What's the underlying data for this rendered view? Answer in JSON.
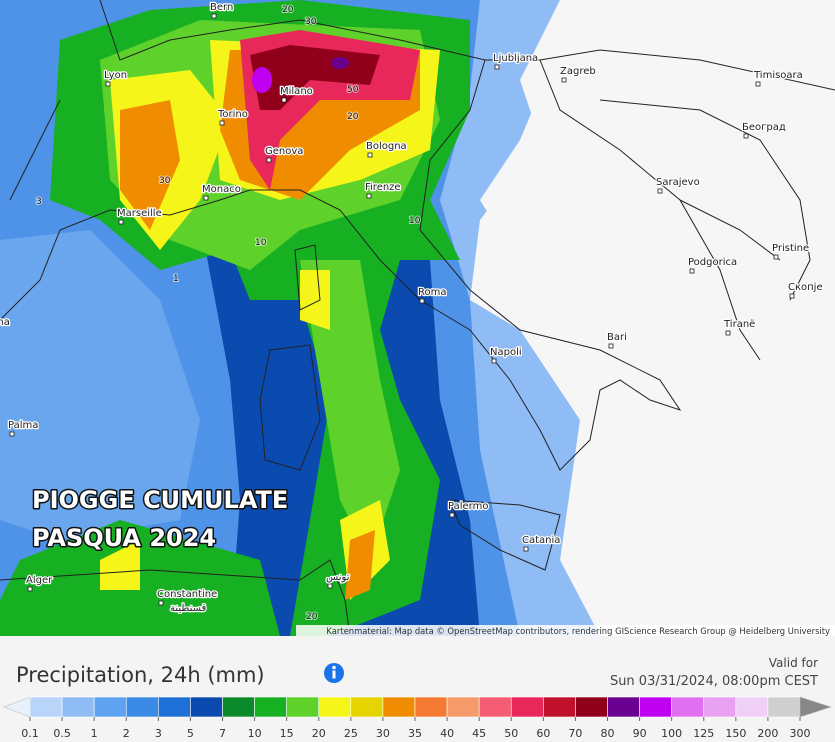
{
  "map": {
    "overlay_title": [
      "PIOGGE CUMULATE",
      "PASQUA 2024"
    ],
    "cities": [
      "Bern",
      "Lyon",
      "Torino",
      "Milano",
      "Genova",
      "Monaco",
      "Marseille",
      "Bologna",
      "Firenze",
      "Ljubljana",
      "Zagreb",
      "Timisoara",
      "Београд",
      "Sarajevo",
      "Podgorica",
      "Pristine",
      "Скопје",
      "Tiranë",
      "Roma",
      "Bari",
      "Napoli",
      "Palma",
      "Palermo",
      "Catania",
      "Alger",
      "Constantine",
      "قسنطينة",
      "تونس",
      "Barcelona"
    ],
    "contour_labels": [
      20,
      30,
      50,
      20,
      30,
      10,
      10,
      1,
      3,
      20
    ],
    "attribution": "Kartenmaterial: Map data © OpenStreetMap contributors, rendering GIScience Research Group @ Heidelberg University"
  },
  "legend": {
    "title": "Precipitation, 24h (mm)",
    "valid_label": "Valid for",
    "valid_time": "Sun 03/31/2024, 08:00pm CEST",
    "ticks": [
      0.1,
      0.5,
      1,
      2,
      3,
      5,
      7,
      10,
      15,
      20,
      25,
      30,
      35,
      40,
      45,
      50,
      60,
      70,
      80,
      90,
      100,
      125,
      150,
      200,
      300
    ],
    "colors": [
      "#e8f0fb",
      "#b8d4f8",
      "#8fbcf5",
      "#5fa2ef",
      "#3a8ae6",
      "#1e6fd6",
      "#0b4bb0",
      "#0a8a2a",
      "#16b022",
      "#5ed12a",
      "#f6f51a",
      "#e5d400",
      "#f08c00",
      "#f47a33",
      "#f69a6a",
      "#f45d74",
      "#e8285a",
      "#c0102b",
      "#90001a",
      "#6a0090",
      "#c000f0",
      "#e070f0",
      "#e8a0f0",
      "#f0d0f6",
      "#cfcfcf",
      "#888888"
    ]
  }
}
